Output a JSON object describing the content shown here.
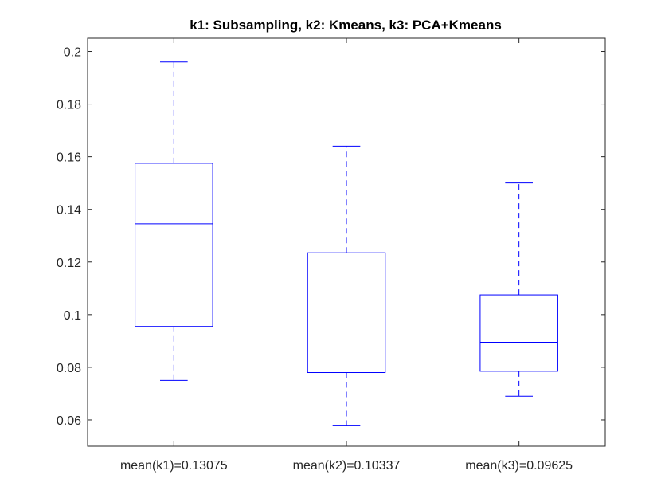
{
  "chart_data": {
    "type": "box",
    "title": "k1: Subsampling, k2: Kmeans, k3: PCA+Kmeans",
    "xlabel": "",
    "ylabel": "",
    "ylim": [
      0.05,
      0.205
    ],
    "yticks": [
      0.06,
      0.08,
      0.1,
      0.12,
      0.14,
      0.16,
      0.18,
      0.2
    ],
    "ytick_labels": [
      "0.06",
      "0.08",
      "0.1",
      "0.12",
      "0.14",
      "0.16",
      "0.18",
      "0.2"
    ],
    "categories": [
      "mean(k1)=0.13075",
      "mean(k2)=0.10337",
      "mean(k3)=0.09625"
    ],
    "boxes": [
      {
        "whisker_low": 0.075,
        "q1": 0.0955,
        "median": 0.1345,
        "q3": 0.1575,
        "whisker_high": 0.196
      },
      {
        "whisker_low": 0.058,
        "q1": 0.078,
        "median": 0.101,
        "q3": 0.1235,
        "whisker_high": 0.164
      },
      {
        "whisker_low": 0.069,
        "q1": 0.0785,
        "median": 0.0895,
        "q3": 0.1075,
        "whisker_high": 0.15
      }
    ],
    "grid": false,
    "colors": {
      "box": "#0000ff",
      "axis": "#262626"
    }
  }
}
